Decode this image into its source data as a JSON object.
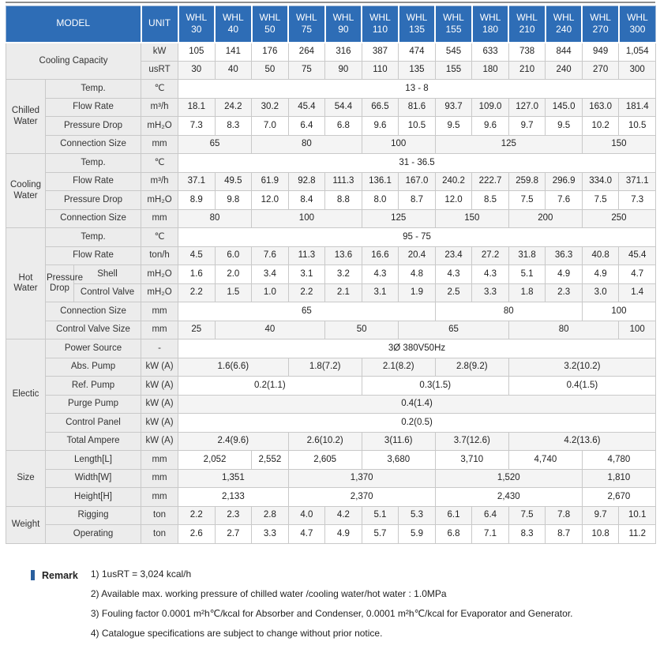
{
  "colors": {
    "header_bg": "#2e6db6",
    "header_text": "#ffffff",
    "label_cell_bg": "#ececec",
    "alt_row_bg": "#f4f4f4",
    "grid_border": "#c9c9c9",
    "remark_bullet": "#2a5f9e"
  },
  "table": {
    "header": {
      "model_label": "MODEL",
      "unit_label": "UNIT",
      "columns": [
        "WHL 30",
        "WHL 40",
        "WHL 50",
        "WHL 75",
        "WHL 90",
        "WHL 110",
        "WHL 135",
        "WHL 155",
        "WHL 180",
        "WHL 210",
        "WHL 240",
        "WHL 270",
        "WHL 300"
      ]
    },
    "rows": [
      [
        {
          "t": "Cooling Capacity",
          "k": "lab",
          "c": 3,
          "r": 2
        },
        {
          "t": "kW",
          "k": "unit"
        },
        {
          "t": "105"
        },
        {
          "t": "141"
        },
        {
          "t": "176"
        },
        {
          "t": "264"
        },
        {
          "t": "316"
        },
        {
          "t": "387"
        },
        {
          "t": "474"
        },
        {
          "t": "545"
        },
        {
          "t": "633"
        },
        {
          "t": "738"
        },
        {
          "t": "844"
        },
        {
          "t": "949"
        },
        {
          "t": "1,054"
        }
      ],
      [
        {
          "t": "usRT",
          "k": "unit"
        },
        {
          "t": "30"
        },
        {
          "t": "40"
        },
        {
          "t": "50"
        },
        {
          "t": "75"
        },
        {
          "t": "90"
        },
        {
          "t": "110"
        },
        {
          "t": "135"
        },
        {
          "t": "155"
        },
        {
          "t": "180"
        },
        {
          "t": "210"
        },
        {
          "t": "240"
        },
        {
          "t": "270"
        },
        {
          "t": "300"
        }
      ],
      [
        {
          "t": "Chilled Water",
          "k": "sec",
          "r": 4
        },
        {
          "t": "Temp.",
          "k": "lab",
          "c": 2
        },
        {
          "t": "℃",
          "k": "unit"
        },
        {
          "t": "13 - 8",
          "c": 13
        }
      ],
      [
        {
          "t": "Flow Rate",
          "k": "lab",
          "c": 2
        },
        {
          "t": "m³/h",
          "k": "unit"
        },
        {
          "t": "18.1"
        },
        {
          "t": "24.2"
        },
        {
          "t": "30.2"
        },
        {
          "t": "45.4"
        },
        {
          "t": "54.4"
        },
        {
          "t": "66.5"
        },
        {
          "t": "81.6"
        },
        {
          "t": "93.7"
        },
        {
          "t": "109.0"
        },
        {
          "t": "127.0"
        },
        {
          "t": "145.0"
        },
        {
          "t": "163.0"
        },
        {
          "t": "181.4"
        }
      ],
      [
        {
          "t": "Pressure Drop",
          "k": "lab",
          "c": 2
        },
        {
          "t": "mH₂O",
          "k": "unit"
        },
        {
          "t": "7.3"
        },
        {
          "t": "8.3"
        },
        {
          "t": "7.0"
        },
        {
          "t": "6.4"
        },
        {
          "t": "6.8"
        },
        {
          "t": "9.6"
        },
        {
          "t": "10.5"
        },
        {
          "t": "9.5"
        },
        {
          "t": "9.6"
        },
        {
          "t": "9.7"
        },
        {
          "t": "9.5"
        },
        {
          "t": "10.2"
        },
        {
          "t": "10.5"
        }
      ],
      [
        {
          "t": "Connection Size",
          "k": "lab",
          "c": 2
        },
        {
          "t": "mm",
          "k": "unit"
        },
        {
          "t": "65",
          "c": 2
        },
        {
          "t": "80",
          "c": 3
        },
        {
          "t": "100",
          "c": 2
        },
        {
          "t": "125",
          "c": 4
        },
        {
          "t": "150",
          "c": 2
        }
      ],
      [
        {
          "t": "Cooling Water",
          "k": "sec",
          "r": 4
        },
        {
          "t": "Temp.",
          "k": "lab",
          "c": 2
        },
        {
          "t": "℃",
          "k": "unit"
        },
        {
          "t": "31 - 36.5",
          "c": 13
        }
      ],
      [
        {
          "t": "Flow Rate",
          "k": "lab",
          "c": 2
        },
        {
          "t": "m³/h",
          "k": "unit"
        },
        {
          "t": "37.1"
        },
        {
          "t": "49.5"
        },
        {
          "t": "61.9"
        },
        {
          "t": "92.8"
        },
        {
          "t": "111.3"
        },
        {
          "t": "136.1"
        },
        {
          "t": "167.0"
        },
        {
          "t": "240.2"
        },
        {
          "t": "222.7"
        },
        {
          "t": "259.8"
        },
        {
          "t": "296.9"
        },
        {
          "t": "334.0"
        },
        {
          "t": "371.1"
        }
      ],
      [
        {
          "t": "Pressure Drop",
          "k": "lab",
          "c": 2
        },
        {
          "t": "mH₂O",
          "k": "unit"
        },
        {
          "t": "8.9"
        },
        {
          "t": "9.8"
        },
        {
          "t": "12.0"
        },
        {
          "t": "8.4"
        },
        {
          "t": "8.8"
        },
        {
          "t": "8.0"
        },
        {
          "t": "8.7"
        },
        {
          "t": "12.0"
        },
        {
          "t": "8.5"
        },
        {
          "t": "7.5"
        },
        {
          "t": "7.6"
        },
        {
          "t": "7.5"
        },
        {
          "t": "7.3"
        }
      ],
      [
        {
          "t": "Connection Size",
          "k": "lab",
          "c": 2
        },
        {
          "t": "mm",
          "k": "unit"
        },
        {
          "t": "80",
          "c": 2
        },
        {
          "t": "100",
          "c": 3
        },
        {
          "t": "125",
          "c": 2
        },
        {
          "t": "150",
          "c": 2
        },
        {
          "t": "200",
          "c": 2
        },
        {
          "t": "250",
          "c": 2
        }
      ],
      [
        {
          "t": "Hot Water",
          "k": "sec",
          "r": 6
        },
        {
          "t": "Temp.",
          "k": "lab",
          "c": 2
        },
        {
          "t": "℃",
          "k": "unit"
        },
        {
          "t": "95 - 75",
          "c": 13
        }
      ],
      [
        {
          "t": "Flow Rate",
          "k": "lab",
          "c": 2
        },
        {
          "t": "ton/h",
          "k": "unit"
        },
        {
          "t": "4.5"
        },
        {
          "t": "6.0"
        },
        {
          "t": "7.6"
        },
        {
          "t": "11.3"
        },
        {
          "t": "13.6"
        },
        {
          "t": "16.6"
        },
        {
          "t": "20.4"
        },
        {
          "t": "23.4"
        },
        {
          "t": "27.2"
        },
        {
          "t": "31.8"
        },
        {
          "t": "36.3"
        },
        {
          "t": "40.8"
        },
        {
          "t": "45.4"
        }
      ],
      [
        {
          "t": "Pressure Drop",
          "k": "sub",
          "r": 2
        },
        {
          "t": "Shell",
          "k": "lab"
        },
        {
          "t": "mH₂O",
          "k": "unit"
        },
        {
          "t": "1.6"
        },
        {
          "t": "2.0"
        },
        {
          "t": "3.4"
        },
        {
          "t": "3.1"
        },
        {
          "t": "3.2"
        },
        {
          "t": "4.3"
        },
        {
          "t": "4.8"
        },
        {
          "t": "4.3"
        },
        {
          "t": "4.3"
        },
        {
          "t": "5.1"
        },
        {
          "t": "4.9"
        },
        {
          "t": "4.9"
        },
        {
          "t": "4.7"
        }
      ],
      [
        {
          "t": "Control Valve",
          "k": "lab"
        },
        {
          "t": "mH₂O",
          "k": "unit"
        },
        {
          "t": "2.2"
        },
        {
          "t": "1.5"
        },
        {
          "t": "1.0"
        },
        {
          "t": "2.2"
        },
        {
          "t": "2.1"
        },
        {
          "t": "3.1"
        },
        {
          "t": "1.9"
        },
        {
          "t": "2.5"
        },
        {
          "t": "3.3"
        },
        {
          "t": "1.8"
        },
        {
          "t": "2.3"
        },
        {
          "t": "3.0"
        },
        {
          "t": "1.4"
        }
      ],
      [
        {
          "t": "Connection Size",
          "k": "lab",
          "c": 2
        },
        {
          "t": "mm",
          "k": "unit"
        },
        {
          "t": "65",
          "c": 7
        },
        {
          "t": "80",
          "c": 4
        },
        {
          "t": "100",
          "c": 2
        }
      ],
      [
        {
          "t": "Control Valve Size",
          "k": "lab",
          "c": 2
        },
        {
          "t": "mm",
          "k": "unit"
        },
        {
          "t": "25",
          "c": 1
        },
        {
          "t": "40",
          "c": 3
        },
        {
          "t": "50",
          "c": 2
        },
        {
          "t": "65",
          "c": 3
        },
        {
          "t": "80",
          "c": 3
        },
        {
          "t": "100",
          "c": 1
        }
      ],
      [
        {
          "t": "Electic",
          "k": "sec",
          "r": 6
        },
        {
          "t": "Power Source",
          "k": "lab",
          "c": 2
        },
        {
          "t": "-",
          "k": "unit"
        },
        {
          "t": "3Ø 380V50Hz",
          "c": 13
        }
      ],
      [
        {
          "t": "Abs. Pump",
          "k": "lab",
          "c": 2
        },
        {
          "t": "kW (A)",
          "k": "unit"
        },
        {
          "t": "1.6(6.6)",
          "c": 3
        },
        {
          "t": "1.8(7.2)",
          "c": 2
        },
        {
          "t": "2.1(8.2)",
          "c": 2
        },
        {
          "t": "2.8(9.2)",
          "c": 2
        },
        {
          "t": "3.2(10.2)",
          "c": 4
        }
      ],
      [
        {
          "t": "Ref. Pump",
          "k": "lab",
          "c": 2
        },
        {
          "t": "kW (A)",
          "k": "unit"
        },
        {
          "t": "0.2(1.1)",
          "c": 5
        },
        {
          "t": "0.3(1.5)",
          "c": 4
        },
        {
          "t": "0.4(1.5)",
          "c": 4
        }
      ],
      [
        {
          "t": "Purge Pump",
          "k": "lab",
          "c": 2
        },
        {
          "t": "kW (A)",
          "k": "unit"
        },
        {
          "t": "0.4(1.4)",
          "c": 13
        }
      ],
      [
        {
          "t": "Control Panel",
          "k": "lab",
          "c": 2
        },
        {
          "t": "kW (A)",
          "k": "unit"
        },
        {
          "t": "0.2(0.5)",
          "c": 13
        }
      ],
      [
        {
          "t": "Total Ampere",
          "k": "lab",
          "c": 2
        },
        {
          "t": "kW (A)",
          "k": "unit"
        },
        {
          "t": "2.4(9.6)",
          "c": 3
        },
        {
          "t": "2.6(10.2)",
          "c": 2
        },
        {
          "t": "3(11.6)",
          "c": 2
        },
        {
          "t": "3.7(12.6)",
          "c": 2
        },
        {
          "t": "4.2(13.6)",
          "c": 4
        }
      ],
      [
        {
          "t": "Size",
          "k": "sec",
          "r": 3
        },
        {
          "t": "Length[L]",
          "k": "lab",
          "c": 2
        },
        {
          "t": "mm",
          "k": "unit"
        },
        {
          "t": "2,052",
          "c": 2
        },
        {
          "t": "2,552",
          "c": 1
        },
        {
          "t": "2,605",
          "c": 2
        },
        {
          "t": "3,680",
          "c": 2
        },
        {
          "t": "3,710",
          "c": 2
        },
        {
          "t": "4,740",
          "c": 2
        },
        {
          "t": "4,780",
          "c": 2
        }
      ],
      [
        {
          "t": "Width[W]",
          "k": "lab",
          "c": 2
        },
        {
          "t": "mm",
          "k": "unit"
        },
        {
          "t": "1,351",
          "c": 3
        },
        {
          "t": "1,370",
          "c": 4
        },
        {
          "t": "1,520",
          "c": 4
        },
        {
          "t": "1,810",
          "c": 2
        }
      ],
      [
        {
          "t": "Height[H]",
          "k": "lab",
          "c": 2
        },
        {
          "t": "mm",
          "k": "unit"
        },
        {
          "t": "2,133",
          "c": 3
        },
        {
          "t": "2,370",
          "c": 4
        },
        {
          "t": "2,430",
          "c": 4
        },
        {
          "t": "2,670",
          "c": 2
        }
      ],
      [
        {
          "t": "Weight",
          "k": "sec",
          "r": 2
        },
        {
          "t": "Rigging",
          "k": "lab",
          "c": 2
        },
        {
          "t": "ton",
          "k": "unit"
        },
        {
          "t": "2.2"
        },
        {
          "t": "2.3"
        },
        {
          "t": "2.8"
        },
        {
          "t": "4.0"
        },
        {
          "t": "4.2"
        },
        {
          "t": "5.1"
        },
        {
          "t": "5.3"
        },
        {
          "t": "6.1"
        },
        {
          "t": "6.4"
        },
        {
          "t": "7.5"
        },
        {
          "t": "7.8"
        },
        {
          "t": "9.7"
        },
        {
          "t": "10.1"
        }
      ],
      [
        {
          "t": "Operating",
          "k": "lab",
          "c": 2
        },
        {
          "t": "ton",
          "k": "unit"
        },
        {
          "t": "2.6"
        },
        {
          "t": "2.7"
        },
        {
          "t": "3.3"
        },
        {
          "t": "4.7"
        },
        {
          "t": "4.9"
        },
        {
          "t": "5.7"
        },
        {
          "t": "5.9"
        },
        {
          "t": "6.8"
        },
        {
          "t": "7.1"
        },
        {
          "t": "8.3"
        },
        {
          "t": "8.7"
        },
        {
          "t": "10.8"
        },
        {
          "t": "11.2"
        }
      ]
    ]
  },
  "remarks": {
    "title": "Remark",
    "items": [
      "1) 1usRT = 3,024 kcal/h",
      "2) Available max. working pressure of chilled water /cooling water/hot water : 1.0MPa",
      "3) Fouling factor 0.0001 m²h℃/kcal for Absorber and Condenser, 0.0001 m²h℃/kcal for Evaporator and Generator.",
      "4) Catalogue specifications are subject to change without prior notice."
    ]
  }
}
